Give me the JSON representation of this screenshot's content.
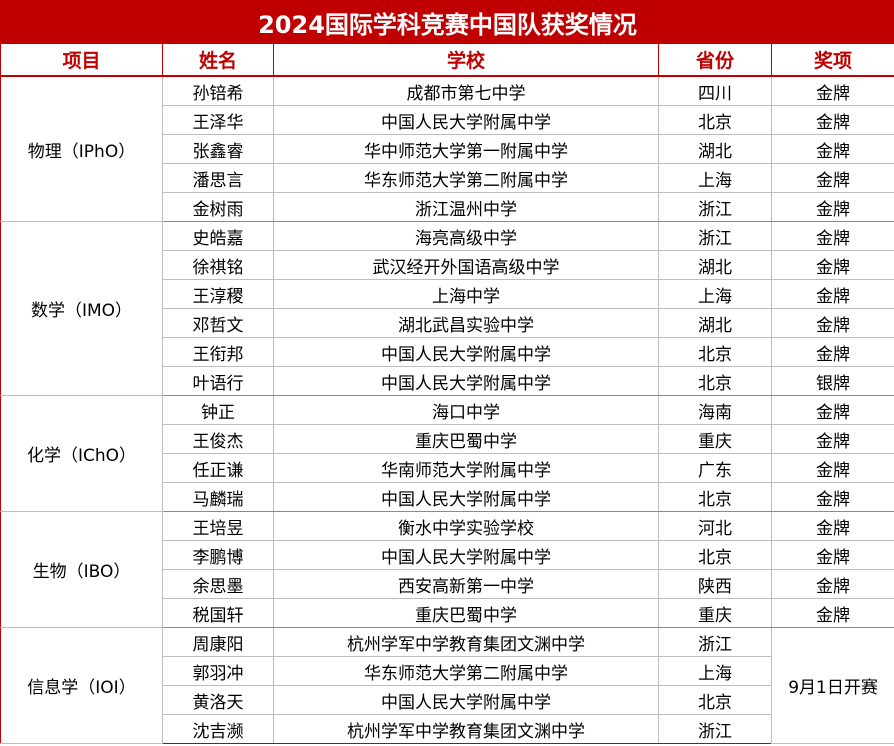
{
  "title": "2024国际学科竞赛中国队获奖情况",
  "headers": {
    "subject": "项目",
    "name": "姓名",
    "school": "学校",
    "province": "省份",
    "award": "奖项"
  },
  "groups": [
    {
      "subject": "物理（IPhO）",
      "rows": [
        {
          "name": "孙锫希",
          "school": "成都市第七中学",
          "province": "四川",
          "award": "金牌"
        },
        {
          "name": "王泽华",
          "school": "中国人民大学附属中学",
          "province": "北京",
          "award": "金牌"
        },
        {
          "name": "张鑫睿",
          "school": "华中师范大学第一附属中学",
          "province": "湖北",
          "award": "金牌"
        },
        {
          "name": "潘思言",
          "school": "华东师范大学第二附属中学",
          "province": "上海",
          "award": "金牌"
        },
        {
          "name": "金树雨",
          "school": "浙江温州中学",
          "province": "浙江",
          "award": "金牌"
        }
      ]
    },
    {
      "subject": "数学（IMO）",
      "rows": [
        {
          "name": "史皓嘉",
          "school": "海亮高级中学",
          "province": "浙江",
          "award": "金牌"
        },
        {
          "name": "徐祺铭",
          "school": "武汉经开外国语高级中学",
          "province": "湖北",
          "award": "金牌"
        },
        {
          "name": "王淳稷",
          "school": "上海中学",
          "province": "上海",
          "award": "金牌"
        },
        {
          "name": "邓哲文",
          "school": "湖北武昌实验中学",
          "province": "湖北",
          "award": "金牌"
        },
        {
          "name": "王衔邦",
          "school": "中国人民大学附属中学",
          "province": "北京",
          "award": "金牌"
        },
        {
          "name": "叶语行",
          "school": "中国人民大学附属中学",
          "province": "北京",
          "award": "银牌"
        }
      ]
    },
    {
      "subject": "化学（IChO）",
      "rows": [
        {
          "name": "钟正",
          "school": "海口中学",
          "province": "海南",
          "award": "金牌"
        },
        {
          "name": "王俊杰",
          "school": "重庆巴蜀中学",
          "province": "重庆",
          "award": "金牌"
        },
        {
          "name": "任正谦",
          "school": "华南师范大学附属中学",
          "province": "广东",
          "award": "金牌"
        },
        {
          "name": "马麟瑞",
          "school": "中国人民大学附属中学",
          "province": "北京",
          "award": "金牌"
        }
      ]
    },
    {
      "subject": "生物（IBO）",
      "rows": [
        {
          "name": "王培昱",
          "school": "衡水中学实验学校",
          "province": "河北",
          "award": "金牌"
        },
        {
          "name": "李鹏博",
          "school": "中国人民大学附属中学",
          "province": "北京",
          "award": "金牌"
        },
        {
          "name": "余思墨",
          "school": "西安高新第一中学",
          "province": "陕西",
          "award": "金牌"
        },
        {
          "name": "税国轩",
          "school": "重庆巴蜀中学",
          "province": "重庆",
          "award": "金牌"
        }
      ]
    },
    {
      "subject": "信息学（IOI）",
      "merged_award": "9月1日开赛",
      "rows": [
        {
          "name": "周康阳",
          "school": "杭州学军中学教育集团文渊中学",
          "province": "浙江"
        },
        {
          "name": "郭羽冲",
          "school": "华东师范大学第二附属中学",
          "province": "上海"
        },
        {
          "name": "黄洛天",
          "school": "中国人民大学附属中学",
          "province": "北京"
        },
        {
          "name": "沈吉濒",
          "school": "杭州学军中学教育集团文渊中学",
          "province": "浙江"
        }
      ]
    }
  ]
}
